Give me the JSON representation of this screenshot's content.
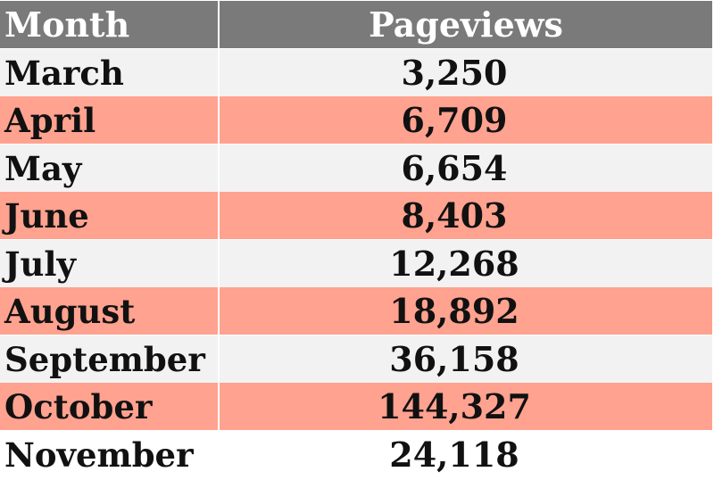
{
  "chart_data": {
    "type": "table",
    "columns": [
      "Month",
      "Pageviews"
    ],
    "rows": [
      {
        "month": "March",
        "pageviews": "3,250"
      },
      {
        "month": "April",
        "pageviews": "6,709"
      },
      {
        "month": "May",
        "pageviews": "6,654"
      },
      {
        "month": "June",
        "pageviews": "8,403"
      },
      {
        "month": "July",
        "pageviews": "12,268"
      },
      {
        "month": "August",
        "pageviews": "18,892"
      },
      {
        "month": "September",
        "pageviews": "36,158"
      },
      {
        "month": "October",
        "pageviews": "144,327"
      },
      {
        "month": "November",
        "pageviews": "24,118"
      }
    ]
  },
  "colors": {
    "header_bg": "#7a7a7a",
    "header_text": "#ffffff",
    "row_light": "#f2f2f2",
    "row_accent": "#ffa28f"
  }
}
